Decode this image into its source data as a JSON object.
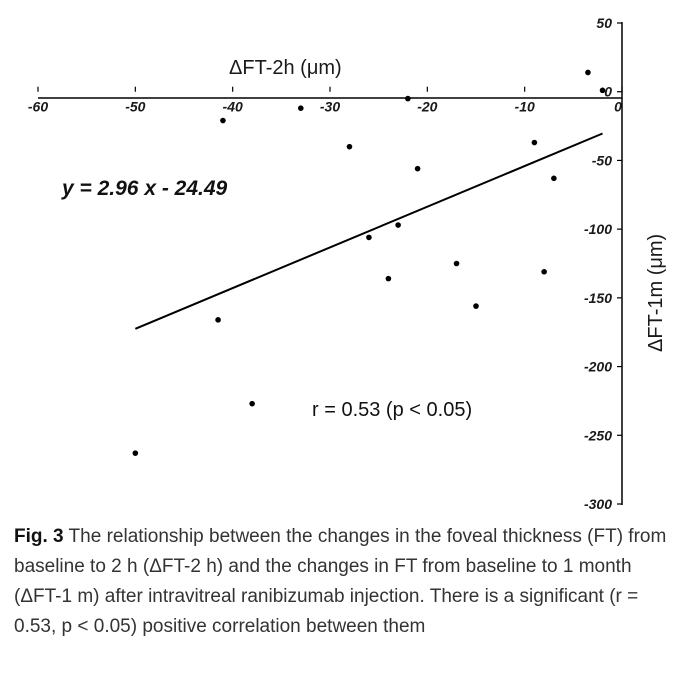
{
  "chart_data": {
    "type": "scatter",
    "xlabel": "ΔFT-2h (μm)",
    "ylabel": "ΔFT-1m (μm)",
    "xlim": [
      -60,
      0
    ],
    "ylim": [
      -300,
      50
    ],
    "x_ticks": [
      "-60",
      "-50",
      "-40",
      "-30",
      "-20",
      "-10",
      "0"
    ],
    "y_ticks": [
      "50",
      "0",
      "-50",
      "-100",
      "-150",
      "-200",
      "-250",
      "-300"
    ],
    "grid": false,
    "points": [
      {
        "x": -50,
        "y": -263
      },
      {
        "x": -41.5,
        "y": -166
      },
      {
        "x": -41,
        "y": -21
      },
      {
        "x": -38,
        "y": -227
      },
      {
        "x": -33,
        "y": -12
      },
      {
        "x": -28,
        "y": -40
      },
      {
        "x": -26,
        "y": -106
      },
      {
        "x": -24,
        "y": -136
      },
      {
        "x": -23,
        "y": -97
      },
      {
        "x": -22,
        "y": -5
      },
      {
        "x": -21,
        "y": -56
      },
      {
        "x": -17,
        "y": -125
      },
      {
        "x": -15,
        "y": -156
      },
      {
        "x": -9,
        "y": -37
      },
      {
        "x": -8,
        "y": -131
      },
      {
        "x": -7,
        "y": -63
      },
      {
        "x": -3.5,
        "y": 14
      },
      {
        "x": -2,
        "y": 1
      }
    ],
    "trendline": {
      "slope": 2.96,
      "intercept": -24.49,
      "x_range": [
        -50,
        -2
      ]
    },
    "annotations": {
      "equation": "y = 2.96 x - 24.49",
      "correlation": "r = 0.53 (p < 0.05)"
    }
  },
  "caption": {
    "label": "Fig. 3",
    "text": " The relationship between the changes in the foveal thickness (FT) from baseline to 2 h (ΔFT-2 h) and the changes in FT from baseline to 1 month (ΔFT-1 m) after intravitreal ranibizumab injection. There is a significant (r = 0.53, p < 0.05) positive correlation between them"
  }
}
